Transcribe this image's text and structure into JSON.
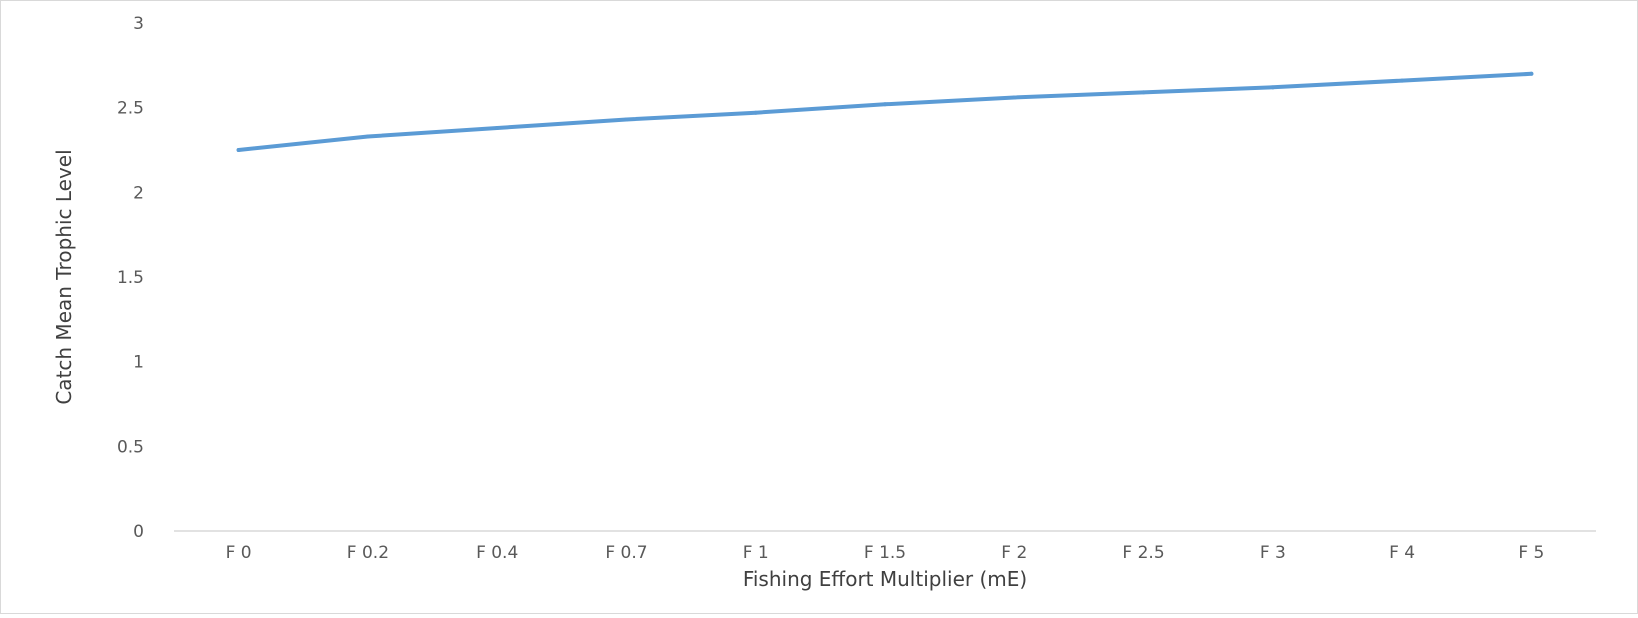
{
  "chart_data": {
    "type": "line",
    "title": "",
    "xlabel": "Fishing Effort Multiplier (mE)",
    "ylabel": "Catch Mean Trophic Level",
    "categories": [
      "F 0",
      "F 0.2",
      "F 0.4",
      "F 0.7",
      "F 1",
      "F 1.5",
      "F 2",
      "F 2.5",
      "F 3",
      "F 4",
      "F 5"
    ],
    "series": [
      {
        "values": [
          2.25,
          2.33,
          2.38,
          2.43,
          2.47,
          2.52,
          2.56,
          2.59,
          2.62,
          2.66,
          2.7
        ],
        "color": "#5b9bd5"
      }
    ],
    "ylim": [
      0,
      3
    ],
    "yticks": [
      "0",
      "0.5",
      "1",
      "1.5",
      "2",
      "2.5",
      "3"
    ],
    "grid": false,
    "legend": "none"
  }
}
